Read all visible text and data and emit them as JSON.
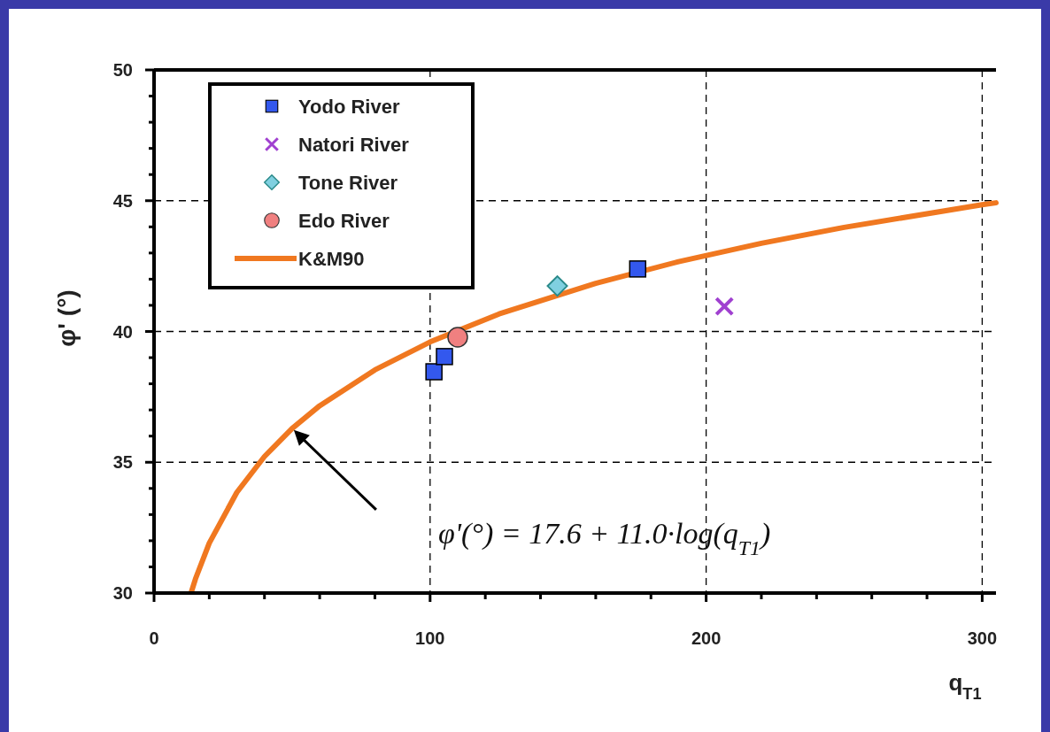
{
  "chart_data": {
    "type": "scatter",
    "xlabel": "q$_{T1}$",
    "ylabel": "φ' (°)",
    "xlim": [
      0,
      305
    ],
    "ylim": [
      30,
      50
    ],
    "xticks": [
      0,
      {
        "value": 20,
        "label": null
      },
      {
        "value": 40,
        "label": null
      },
      {
        "value": 60,
        "label": null
      },
      {
        "value": 80,
        "label": null
      },
      100,
      {
        "value": 120,
        "label": null
      },
      {
        "value": 140,
        "label": null
      },
      {
        "value": 160,
        "label": null
      },
      {
        "value": 180,
        "label": null
      },
      200,
      {
        "value": 220,
        "label": null
      },
      {
        "value": 240,
        "label": null
      },
      {
        "value": 260,
        "label": null
      },
      {
        "value": 280,
        "label": null
      },
      300
    ],
    "yticks": [
      30,
      {
        "value": 31,
        "label": null
      },
      {
        "value": 32,
        "label": null
      },
      {
        "value": 33,
        "label": null
      },
      {
        "value": 34,
        "label": null
      },
      35,
      {
        "value": 36,
        "label": null
      },
      {
        "value": 37,
        "label": null
      },
      {
        "value": 38,
        "label": null
      },
      {
        "value": 39,
        "label": null
      },
      40,
      {
        "value": 41,
        "label": null
      },
      {
        "value": 42,
        "label": null
      },
      {
        "value": 43,
        "label": null
      },
      {
        "value": 44,
        "label": null
      },
      45,
      {
        "value": 46,
        "label": null
      },
      {
        "value": 47,
        "label": null
      },
      {
        "value": 48,
        "label": null
      },
      {
        "value": 49,
        "label": null
      },
      50
    ],
    "grid": true,
    "legend": "top left",
    "series": [
      {
        "name": "Yodo River",
        "type": "scatter",
        "marker": "square",
        "color": "#3358ee",
        "x": [
          101.4,
          105.2,
          175.2
        ],
        "values": [
          38.46,
          39.04,
          42.39
        ]
      },
      {
        "name": "Natori River",
        "type": "scatter",
        "marker": "cross",
        "color": "#a040d0",
        "x": [
          206.6
        ],
        "values": [
          40.96
        ]
      },
      {
        "name": "Tone River",
        "type": "scatter",
        "marker": "diamond",
        "color": "#80d0e0",
        "x": [
          146.1
        ],
        "values": [
          41.74
        ]
      },
      {
        "name": "Edo River",
        "type": "scatter",
        "marker": "circle",
        "color": "#f08080",
        "x": [
          110
        ],
        "values": [
          39.78
        ]
      },
      {
        "name": "K&M90",
        "type": "line",
        "marker": "none",
        "color": "#f07820",
        "x": [
          13.4,
          15,
          20,
          30,
          40,
          50,
          60,
          80,
          100,
          125,
          160,
          190,
          220,
          250,
          300,
          305
        ],
        "values": [
          30,
          30.54,
          31.91,
          33.85,
          35.22,
          36.29,
          37.16,
          38.53,
          39.6,
          40.67,
          41.84,
          42.67,
          43.37,
          43.98,
          44.85,
          44.92
        ]
      }
    ],
    "annotations": [
      "φ'(°) = 17.6 + 11.0·log(q$_{T1}$)"
    ]
  }
}
